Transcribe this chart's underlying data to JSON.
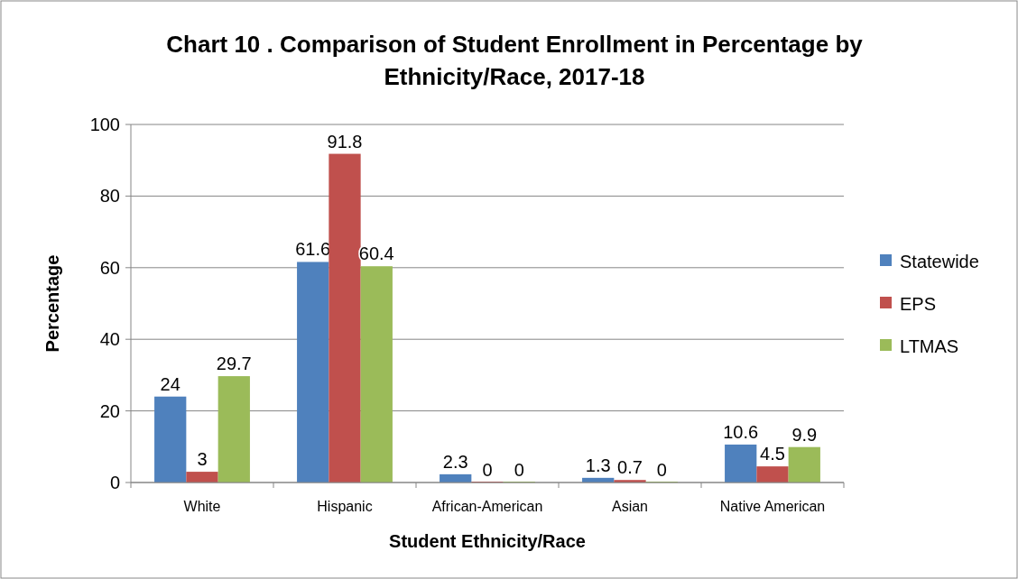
{
  "chart_data": {
    "type": "bar",
    "title": "Chart 10 . Comparison of Student Enrollment in Percentage by Ethnicity/Race, 2017-18",
    "xlabel": "Student Ethnicity/Race",
    "ylabel": "Percentage",
    "categories": [
      "White",
      "Hispanic",
      "African-American",
      "Asian",
      "Native American"
    ],
    "series": [
      {
        "name": "Statewide",
        "color": "#4f81bd",
        "values": [
          24,
          61.6,
          2.3,
          1.3,
          10.6
        ]
      },
      {
        "name": "EPS",
        "color": "#c0504d",
        "values": [
          3,
          91.8,
          0,
          0.7,
          4.5
        ]
      },
      {
        "name": "LTMAS",
        "color": "#9bbb59",
        "values": [
          29.7,
          60.4,
          0,
          0,
          9.9
        ]
      }
    ],
    "ylim": [
      0,
      100
    ],
    "yticks": [
      0,
      20,
      40,
      60,
      80,
      100
    ],
    "grid": "y",
    "legend": "right",
    "data_labels": true
  }
}
